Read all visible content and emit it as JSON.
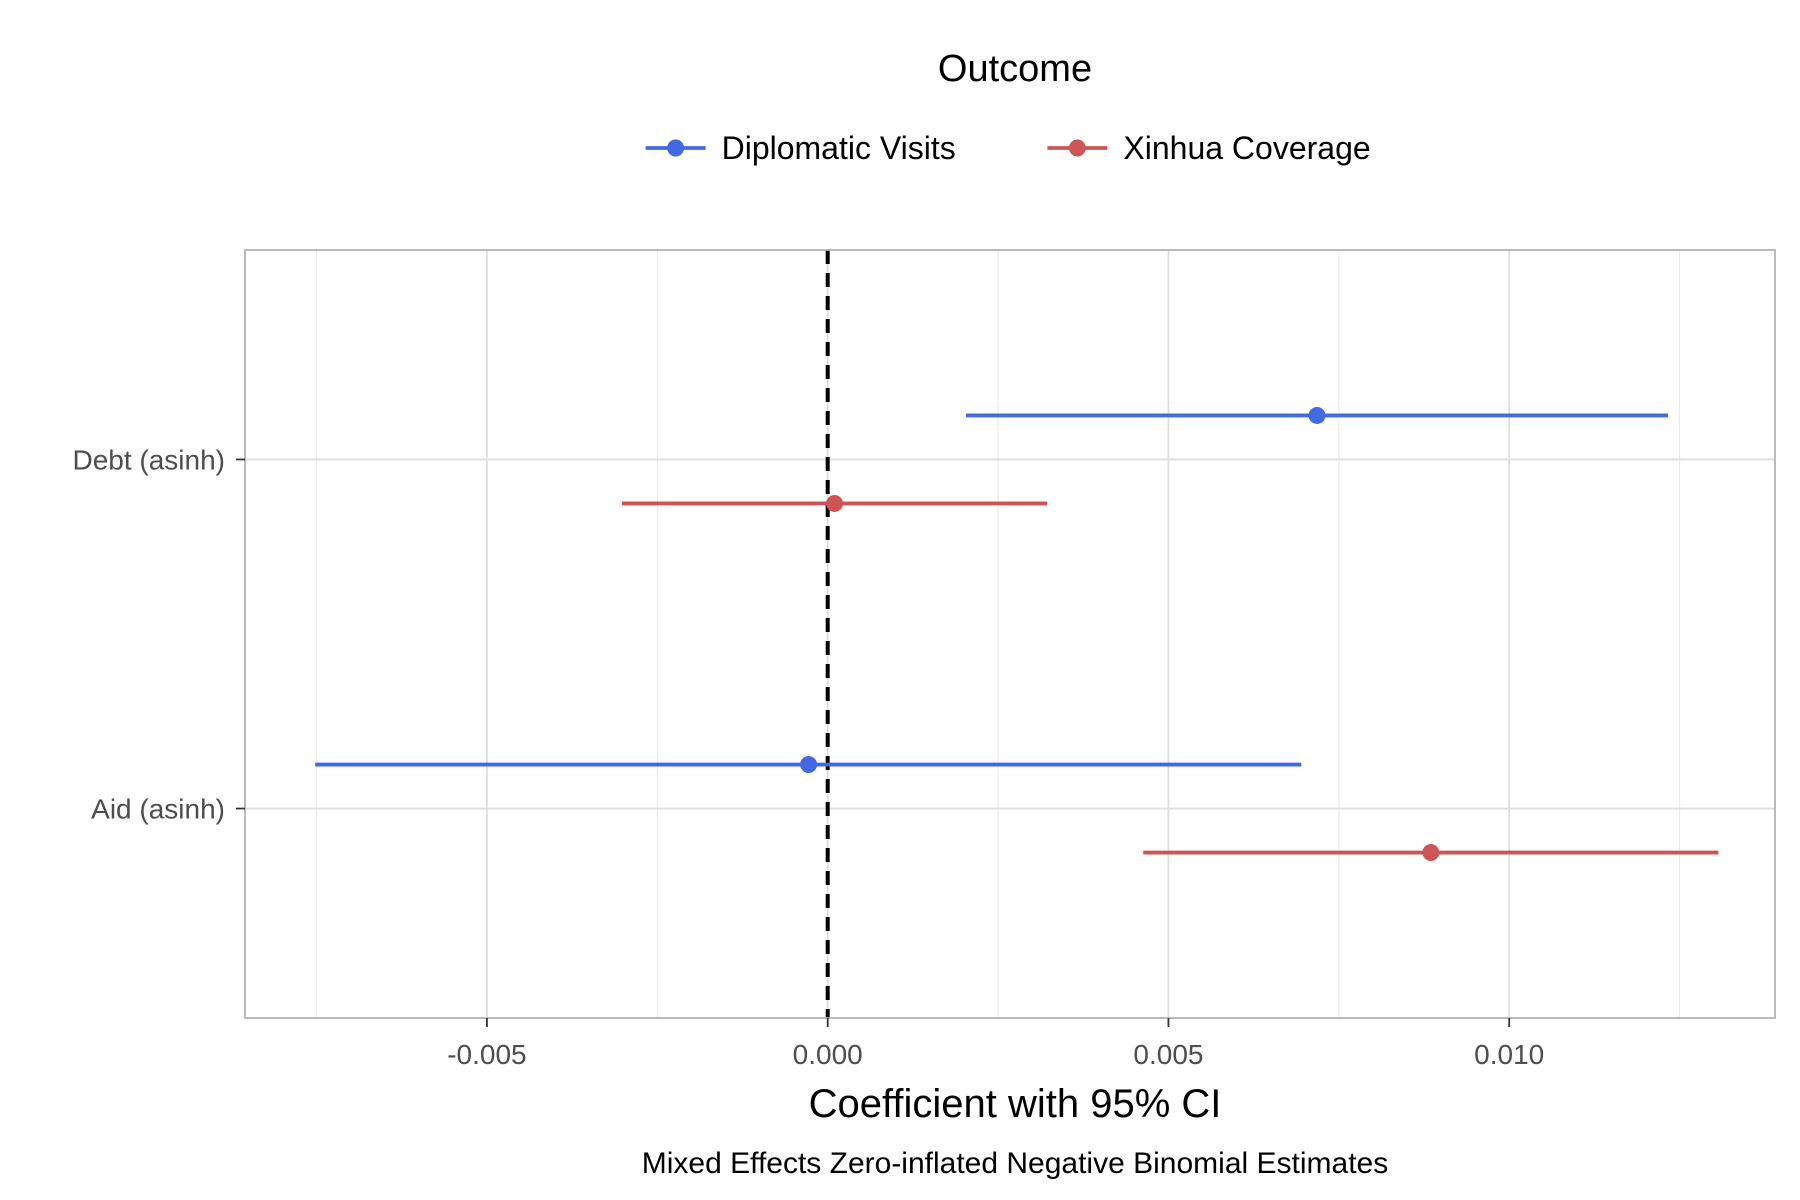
{
  "chart_data": {
    "type": "scatter",
    "subtype": "coefficient-plot",
    "orientation": "horizontal",
    "title": "",
    "xlabel": "Coefficient with 95% CI",
    "ylabel": "",
    "caption": "Mixed Effects Zero-inflated Negative Binomial Estimates",
    "xlim": [
      -0.00855,
      0.0139
    ],
    "x_ticks": [
      -0.005,
      0.0,
      0.005,
      0.01
    ],
    "x_tick_labels": [
      "-0.005",
      "0.000",
      "0.005",
      "0.010"
    ],
    "categories": [
      "Debt (asinh)",
      "Aid (asinh)"
    ],
    "reference_line": {
      "x": 0,
      "style": "dashed",
      "color": "#000000"
    },
    "grid": true,
    "legend": {
      "title": "Outcome",
      "position": "top"
    },
    "series": [
      {
        "name": "Diplomatic Visits",
        "color": "#4169E1",
        "points": [
          {
            "category": "Debt (asinh)",
            "estimate": 0.00718,
            "lower": 0.00203,
            "upper": 0.01233
          },
          {
            "category": "Aid (asinh)",
            "estimate": -0.00028,
            "lower": -0.00752,
            "upper": 0.00695
          }
        ]
      },
      {
        "name": "Xinhua Coverage",
        "color": "#CD5555",
        "points": [
          {
            "category": "Debt (asinh)",
            "estimate": 0.0001,
            "lower": -0.00302,
            "upper": 0.00322
          },
          {
            "category": "Aid (asinh)",
            "estimate": 0.00885,
            "lower": 0.00463,
            "upper": 0.01307
          }
        ]
      }
    ]
  }
}
